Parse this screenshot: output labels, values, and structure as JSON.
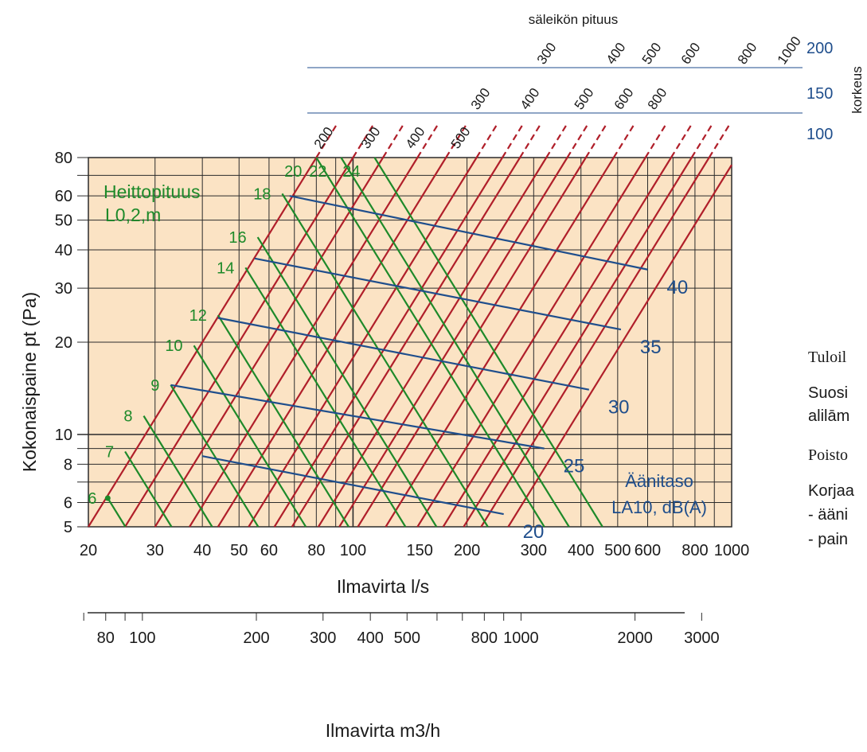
{
  "side_text": {
    "line1": "Tuloil",
    "line2": "Suosi",
    "line3": "alilām",
    "line4": "Poisto",
    "line5": "Korjaa",
    "line6": "- ääni",
    "line7": "- pain"
  },
  "chart_data": {
    "type": "line",
    "scale": "log-log",
    "colors": {
      "background": "#fbe3c4",
      "grid": "#2b2b2b",
      "duct": "#b01f2a",
      "throw": "#1e8a2a",
      "sound": "#1f4e8c"
    },
    "xlabel": "Ilmavirta l/s",
    "xlim": [
      20,
      1000
    ],
    "x_ticks": [
      "20",
      "30",
      "40",
      "50",
      "60",
      "80",
      "100",
      "150",
      "200",
      "300",
      "400",
      "500",
      "600",
      "800",
      "1000"
    ],
    "x2label": "Ilmavirta m3/h",
    "x2_ticks": [
      "80",
      "100",
      "200",
      "300",
      "400",
      "500",
      "800",
      "1000",
      "2000",
      "3000"
    ],
    "ylabel": "Kokonaispaine   pt (Pa)",
    "ylim": [
      5,
      80
    ],
    "y_ticks": [
      "5",
      "6",
      "8",
      "10",
      "20",
      "30",
      "40",
      "50",
      "60",
      "80"
    ],
    "top_title": "säleikön pituus",
    "height_title": "korkeus",
    "heights": [
      "200",
      "150",
      "100"
    ],
    "length_labels": {
      "h200": [
        "300",
        "400",
        "500",
        "600",
        "800",
        "1000"
      ],
      "h150": [
        "300",
        "400",
        "500",
        "600",
        "800"
      ],
      "h100": [
        "200",
        "300",
        "400",
        "500"
      ]
    },
    "duct_lines_flow_at_p5": [
      20,
      25,
      30,
      37,
      44,
      53,
      62,
      69,
      81,
      92,
      103,
      122,
      148,
      173,
      196,
      218,
      257
    ],
    "throw_label": "Heittopituus",
    "throw_unit_label": "L0,2,m",
    "throw_lines": [
      {
        "label": "6",
        "p": 6.2,
        "q": 22.5
      },
      {
        "label": "7",
        "p": 8.8,
        "q": 25
      },
      {
        "label": "8",
        "p": 11.5,
        "q": 28
      },
      {
        "label": "9",
        "p": 14.5,
        "q": 33
      },
      {
        "label": "10",
        "p": 19.5,
        "q": 38
      },
      {
        "label": "12",
        "p": 24.5,
        "q": 44
      },
      {
        "label": "14",
        "p": 35,
        "q": 52
      },
      {
        "label": "16",
        "p": 44,
        "q": 56
      },
      {
        "label": "18",
        "p": 61,
        "q": 65
      },
      {
        "label": "20",
        "p": 80,
        "q": 80
      },
      {
        "label": "22",
        "p": 80,
        "q": 93
      },
      {
        "label": "24",
        "p": 80,
        "q": 114
      }
    ],
    "sound_label": "Äänitaso",
    "sound_unit_label": "LA10, dB(A)",
    "sound_lines": [
      {
        "label": "20",
        "from": [
          40,
          8.5
        ],
        "to": [
          250,
          5.5
        ]
      },
      {
        "label": "25",
        "from": [
          33,
          14.5
        ],
        "to": [
          320,
          9
        ]
      },
      {
        "label": "30",
        "from": [
          44,
          24
        ],
        "to": [
          420,
          14
        ]
      },
      {
        "label": "35",
        "from": [
          55,
          37.5
        ],
        "to": [
          510,
          22
        ]
      },
      {
        "label": "40",
        "from": [
          68,
          60
        ],
        "to": [
          600,
          34.5
        ]
      }
    ]
  }
}
